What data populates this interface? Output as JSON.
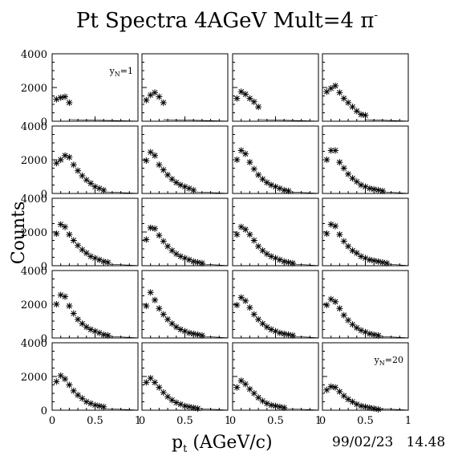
{
  "chart_data": {
    "type": "scatter",
    "title": "Pt Spectra 4AGeV Mult=4 π",
    "title_superscript": "-",
    "xlabel": "pt (AGeV/c)",
    "xlabel_main": "p",
    "xlabel_sub": "t",
    "xlabel_rest": " (AGeV/c)",
    "ylabel": "Counts",
    "xlim": [
      0,
      1
    ],
    "ylim": [
      0,
      4000
    ],
    "grid": false,
    "layout": {
      "rows": 5,
      "cols": 4
    },
    "x_ticks": [
      "0",
      "0.5",
      "1"
    ],
    "y_ticks": [
      "0",
      "2000",
      "4000"
    ],
    "footer": "99/02/23   14.48",
    "panel_labels": [
      {
        "panel": 1,
        "text": "y_N=1",
        "main": "y",
        "sub": "N",
        "rest": "=1"
      },
      {
        "panel": 20,
        "text": "y_N=20",
        "main": "y",
        "sub": "N",
        "rest": "=20"
      }
    ],
    "panels": [
      {
        "index": 1,
        "x": [
          0.05,
          0.1,
          0.15,
          0.2
        ],
        "y": [
          1300,
          1400,
          1450,
          1100
        ]
      },
      {
        "index": 2,
        "x": [
          0.05,
          0.1,
          0.15,
          0.2,
          0.25
        ],
        "y": [
          1250,
          1550,
          1700,
          1450,
          1100
        ]
      },
      {
        "index": 3,
        "x": [
          0.05,
          0.1,
          0.15,
          0.2,
          0.25,
          0.3
        ],
        "y": [
          1350,
          1750,
          1600,
          1350,
          1150,
          850
        ]
      },
      {
        "index": 4,
        "x": [
          0.05,
          0.1,
          0.15,
          0.2,
          0.25,
          0.3,
          0.35,
          0.4,
          0.45,
          0.5
        ],
        "y": [
          1750,
          1950,
          2100,
          1700,
          1350,
          1100,
          850,
          600,
          400,
          350
        ]
      },
      {
        "index": 5,
        "x": [
          0.05,
          0.1,
          0.15,
          0.2,
          0.25,
          0.3,
          0.35,
          0.4,
          0.45,
          0.5,
          0.55,
          0.6
        ],
        "y": [
          1800,
          2000,
          2250,
          2150,
          1700,
          1350,
          1050,
          800,
          600,
          400,
          300,
          200
        ]
      },
      {
        "index": 6,
        "x": [
          0.05,
          0.1,
          0.15,
          0.2,
          0.25,
          0.3,
          0.35,
          0.4,
          0.45,
          0.5,
          0.55,
          0.6
        ],
        "y": [
          1950,
          2450,
          2250,
          1700,
          1400,
          1100,
          850,
          650,
          500,
          400,
          300,
          200
        ]
      },
      {
        "index": 7,
        "x": [
          0.05,
          0.1,
          0.15,
          0.2,
          0.25,
          0.3,
          0.35,
          0.4,
          0.45,
          0.5,
          0.55,
          0.6,
          0.65
        ],
        "y": [
          2000,
          2550,
          2350,
          1850,
          1450,
          1100,
          850,
          650,
          500,
          400,
          300,
          200,
          150
        ]
      },
      {
        "index": 8,
        "x": [
          0.05,
          0.1,
          0.15,
          0.2,
          0.25,
          0.3,
          0.35,
          0.4,
          0.45,
          0.5,
          0.55,
          0.6,
          0.65,
          0.7
        ],
        "y": [
          2000,
          2550,
          2550,
          1850,
          1500,
          1150,
          900,
          700,
          500,
          400,
          300,
          250,
          200,
          150
        ]
      },
      {
        "index": 9,
        "x": [
          0.05,
          0.1,
          0.15,
          0.2,
          0.25,
          0.3,
          0.35,
          0.4,
          0.45,
          0.5,
          0.55,
          0.6,
          0.65
        ],
        "y": [
          1900,
          2450,
          2300,
          1850,
          1500,
          1200,
          950,
          750,
          550,
          450,
          350,
          250,
          200
        ]
      },
      {
        "index": 10,
        "x": [
          0.05,
          0.1,
          0.15,
          0.2,
          0.25,
          0.3,
          0.35,
          0.4,
          0.45,
          0.5,
          0.55,
          0.6,
          0.65,
          0.7
        ],
        "y": [
          1550,
          2250,
          2200,
          1800,
          1450,
          1150,
          900,
          700,
          550,
          450,
          350,
          250,
          200,
          150
        ]
      },
      {
        "index": 11,
        "x": [
          0.05,
          0.1,
          0.15,
          0.2,
          0.25,
          0.3,
          0.35,
          0.4,
          0.45,
          0.5,
          0.55,
          0.6,
          0.65,
          0.7
        ],
        "y": [
          1850,
          2300,
          2150,
          1850,
          1500,
          1150,
          900,
          700,
          550,
          450,
          350,
          250,
          200,
          150
        ]
      },
      {
        "index": 12,
        "x": [
          0.05,
          0.1,
          0.15,
          0.2,
          0.25,
          0.3,
          0.35,
          0.4,
          0.45,
          0.5,
          0.55,
          0.6,
          0.65,
          0.7,
          0.75
        ],
        "y": [
          1900,
          2450,
          2350,
          1850,
          1450,
          1150,
          900,
          750,
          550,
          450,
          350,
          300,
          250,
          200,
          150
        ]
      },
      {
        "index": 13,
        "x": [
          0.05,
          0.1,
          0.15,
          0.2,
          0.25,
          0.3,
          0.35,
          0.4,
          0.45,
          0.5,
          0.55,
          0.6,
          0.65
        ],
        "y": [
          2000,
          2550,
          2450,
          1900,
          1450,
          1100,
          850,
          650,
          500,
          400,
          300,
          200,
          150
        ]
      },
      {
        "index": 14,
        "x": [
          0.05,
          0.1,
          0.15,
          0.2,
          0.25,
          0.3,
          0.35,
          0.4,
          0.45,
          0.5,
          0.55,
          0.6,
          0.65,
          0.7
        ],
        "y": [
          1900,
          2700,
          2250,
          1750,
          1400,
          1100,
          850,
          650,
          500,
          400,
          300,
          250,
          200,
          150
        ]
      },
      {
        "index": 15,
        "x": [
          0.05,
          0.1,
          0.15,
          0.2,
          0.25,
          0.3,
          0.35,
          0.4,
          0.45,
          0.5,
          0.55,
          0.6,
          0.65,
          0.7
        ],
        "y": [
          1950,
          2400,
          2200,
          1800,
          1400,
          1100,
          850,
          650,
          500,
          400,
          300,
          250,
          200,
          150
        ]
      },
      {
        "index": 16,
        "x": [
          0.05,
          0.1,
          0.15,
          0.2,
          0.25,
          0.3,
          0.35,
          0.4,
          0.45,
          0.5,
          0.55,
          0.6,
          0.65
        ],
        "y": [
          1950,
          2300,
          2150,
          1750,
          1350,
          1050,
          800,
          600,
          450,
          350,
          250,
          200,
          150
        ]
      },
      {
        "index": 17,
        "x": [
          0.05,
          0.1,
          0.15,
          0.2,
          0.25,
          0.3,
          0.35,
          0.4,
          0.45,
          0.5,
          0.55,
          0.6
        ],
        "y": [
          1700,
          2050,
          1850,
          1500,
          1150,
          900,
          700,
          500,
          400,
          300,
          250,
          200
        ]
      },
      {
        "index": 18,
        "x": [
          0.05,
          0.1,
          0.15,
          0.2,
          0.25,
          0.3,
          0.35,
          0.4,
          0.45,
          0.5,
          0.55,
          0.6,
          0.65
        ],
        "y": [
          1650,
          1900,
          1650,
          1350,
          1050,
          800,
          600,
          450,
          350,
          250,
          200,
          150,
          100
        ]
      },
      {
        "index": 19,
        "x": [
          0.05,
          0.1,
          0.15,
          0.2,
          0.25,
          0.3,
          0.35,
          0.4,
          0.45,
          0.5,
          0.55,
          0.6
        ],
        "y": [
          1350,
          1750,
          1550,
          1250,
          1000,
          750,
          550,
          400,
          300,
          250,
          200,
          150
        ]
      },
      {
        "index": 20,
        "x": [
          0.05,
          0.1,
          0.15,
          0.2,
          0.25,
          0.3,
          0.35,
          0.4,
          0.45,
          0.5,
          0.55,
          0.6,
          0.65
        ],
        "y": [
          1200,
          1400,
          1350,
          1100,
          850,
          650,
          500,
          350,
          250,
          200,
          150,
          100,
          50
        ]
      }
    ]
  }
}
